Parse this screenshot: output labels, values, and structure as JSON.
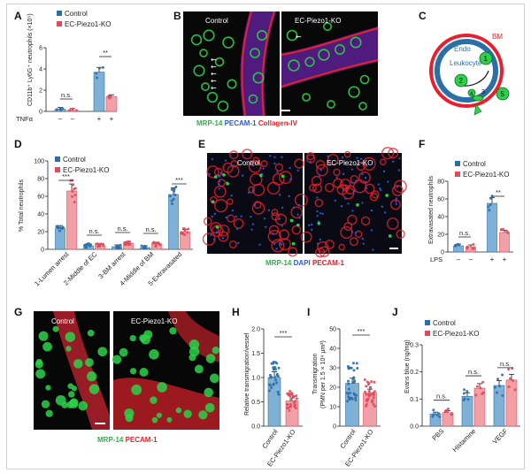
{
  "colors": {
    "control": "#2a6fa8",
    "ko": "#e04a5a",
    "control_fill": "#7fb0d6",
    "ko_fill": "#f2a0a8",
    "green": "#2bd14a",
    "red": "#e8202e",
    "blue": "#2a5ad8",
    "magenta": "#d04ae0"
  },
  "legend": {
    "control": "Control",
    "ko": "EC-Piezo1-KO"
  },
  "panels": {
    "A": {
      "label": "A",
      "ylabel": "CD11b⁺ Ly6G⁺ neutrophils (×10⁵)",
      "yticks": [
        "0",
        "2",
        "4",
        "6"
      ],
      "xfactor": "TNFα",
      "xsigns": [
        "–",
        "–",
        "+",
        "+"
      ],
      "sig": [
        "n.s.",
        "**"
      ]
    },
    "B": {
      "label": "B",
      "control": "Control",
      "ko": "EC-Piezo1-KO",
      "stain1": "MRP-14",
      "stain2": "PECAM-1",
      "stain3": "Collagen-IV"
    },
    "C": {
      "label": "C",
      "bm": "BM",
      "endo": "Endo",
      "leukocyte": "Leukocyte",
      "steps": [
        "1",
        "2",
        "3",
        "4",
        "5"
      ]
    },
    "D": {
      "label": "D",
      "ylabel": "% Total neutrophils",
      "yticks": [
        "0",
        "20",
        "40",
        "60",
        "80",
        "100"
      ],
      "sig": [
        "***",
        "n.s.",
        "n.s.",
        "n.s.",
        "***"
      ]
    },
    "E": {
      "label": "E",
      "control": "Control",
      "ko": "EC-Piezo1-KO",
      "stain1": "MRP-14",
      "stain2": "DAPI",
      "stain3": "PECAM-1"
    },
    "F": {
      "label": "F",
      "ylabel": "Extravasated neutrophils",
      "yticks": [
        "0",
        "20",
        "40",
        "60",
        "80"
      ],
      "xfactor": "LPS",
      "xsigns": [
        "–",
        "–",
        "+",
        "+"
      ],
      "sig": [
        "n.s.",
        "**"
      ]
    },
    "G": {
      "label": "G",
      "control": "Control",
      "ko": "EC-Piezo1-KO",
      "stain1": "MRP-14",
      "stain2": "PECAM-1"
    },
    "H": {
      "label": "H",
      "ylabel": "Relative transmigration/vessel",
      "yticks": [
        "0.0",
        "0.5",
        "1.0",
        "1.5",
        "2.0"
      ],
      "sig": "***"
    },
    "I": {
      "label": "I",
      "ylabel": "Transmigration",
      "ylabel2": "(PMN per 1.5 × 10⁴ µm²)",
      "yticks": [
        "0",
        "10",
        "20",
        "30",
        "40",
        "50"
      ],
      "sig": "***"
    },
    "J": {
      "label": "J",
      "ylabel": "Evans blue (ng/mg)",
      "yticks": [
        "0.0",
        "0.1",
        "0.2",
        "0.3"
      ],
      "sig": [
        "n.s.",
        "n.s.",
        "n.s."
      ]
    }
  },
  "chart_data": [
    {
      "panel": "A",
      "type": "bar",
      "categories": [
        "TNFα –",
        "TNFα +"
      ],
      "series": [
        {
          "name": "Control",
          "values": [
            0.2,
            3.7
          ]
        },
        {
          "name": "EC-Piezo1-KO",
          "values": [
            0.1,
            1.4
          ]
        }
      ],
      "ylim": [
        0,
        6
      ],
      "grid": false
    },
    {
      "panel": "D",
      "type": "bar",
      "categories": [
        "1-Lumen arrest",
        "2-Middle of EC",
        "3-BM arrest",
        "4-Middle of BM",
        "5-Extravasated"
      ],
      "series": [
        {
          "name": "Control",
          "values": [
            24,
            4,
            3,
            2,
            62
          ]
        },
        {
          "name": "EC-Piezo1-KO",
          "values": [
            66,
            4,
            7,
            6,
            20
          ]
        }
      ],
      "ylim": [
        0,
        100
      ],
      "grid": false
    },
    {
      "panel": "F",
      "type": "bar",
      "categories": [
        "LPS –",
        "LPS +"
      ],
      "series": [
        {
          "name": "Control",
          "values": [
            7,
            55
          ]
        },
        {
          "name": "EC-Piezo1-KO",
          "values": [
            6,
            22
          ]
        }
      ],
      "ylim": [
        0,
        80
      ],
      "grid": false
    },
    {
      "panel": "H",
      "type": "bar",
      "categories": [
        "Control",
        "EC-Piezo1-KO"
      ],
      "values": [
        1.0,
        0.52
      ],
      "ylim": [
        0,
        2.0
      ],
      "grid": false
    },
    {
      "panel": "I",
      "type": "bar",
      "categories": [
        "Control",
        "EC-Piezo1-KO"
      ],
      "values": [
        22,
        17
      ],
      "ylim": [
        0,
        50
      ],
      "grid": false
    },
    {
      "panel": "J",
      "type": "bar",
      "categories": [
        "PBS",
        "Histamine",
        "VEGF"
      ],
      "series": [
        {
          "name": "Control",
          "values": [
            0.045,
            0.11,
            0.15
          ]
        },
        {
          "name": "EC-Piezo1-KO",
          "values": [
            0.05,
            0.14,
            0.17
          ]
        }
      ],
      "ylim": [
        0,
        0.3
      ],
      "grid": false
    }
  ]
}
